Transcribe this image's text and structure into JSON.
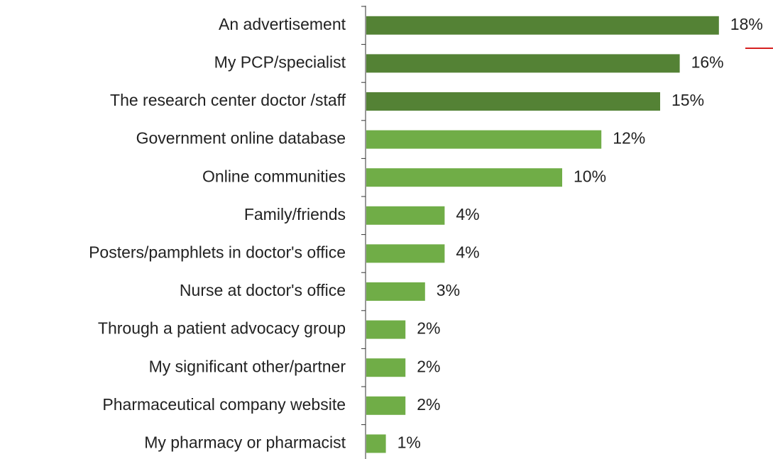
{
  "chart_data": {
    "type": "hbar",
    "categories": [
      "An advertisement",
      "My PCP/specialist",
      "The research center doctor /staff",
      "Government online database",
      "Online communities",
      "Family/friends",
      "Posters/pamphlets in doctor's office",
      "Nurse at doctor's office",
      "Through a patient advocacy group",
      "My significant other/partner",
      "Pharmaceutical company website",
      "My pharmacy or pharmacist"
    ],
    "values": [
      18,
      16,
      15,
      12,
      10,
      4,
      4,
      3,
      2,
      2,
      2,
      1
    ],
    "value_labels": [
      "18%",
      "16%",
      "15%",
      "12%",
      "10%",
      "4%",
      "4%",
      "3%",
      "2%",
      "2%",
      "2%",
      "1%"
    ],
    "colors": [
      "#548235",
      "#548235",
      "#548235",
      "#70ad47",
      "#70ad47",
      "#70ad47",
      "#70ad47",
      "#70ad47",
      "#70ad47",
      "#70ad47",
      "#70ad47",
      "#70ad47"
    ]
  }
}
